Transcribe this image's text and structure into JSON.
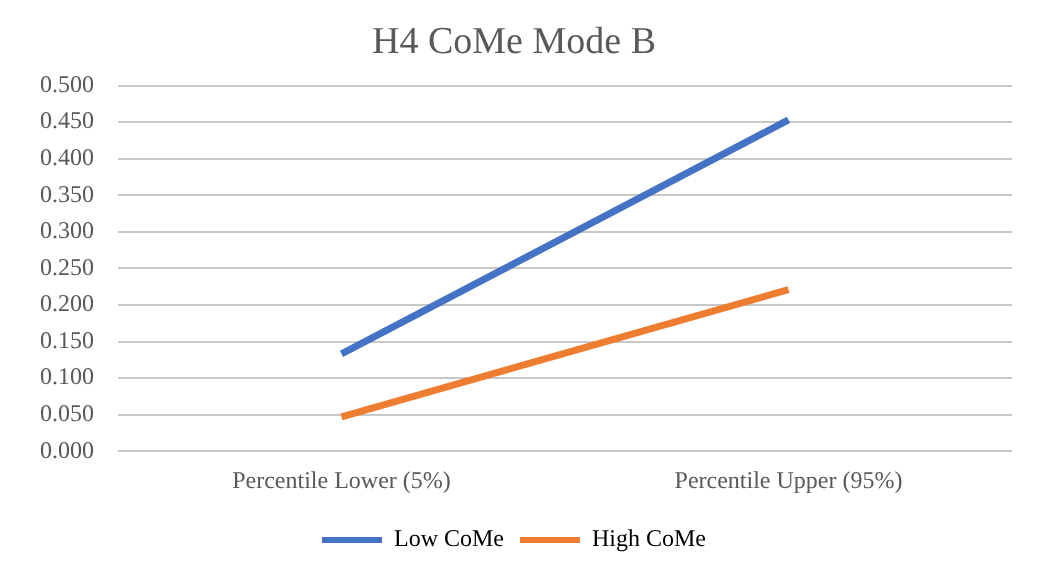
{
  "chart_data": {
    "type": "line",
    "title": "H4 CoMe Mode B",
    "categories": [
      "Percentile Lower (5%)",
      "Percentile Upper (95%)"
    ],
    "series": [
      {
        "name": "Low CoMe",
        "color": "#4472c4",
        "values": [
          0.133,
          0.453
        ]
      },
      {
        "name": "High CoMe",
        "color": "#ed7d31",
        "values": [
          0.047,
          0.221
        ]
      }
    ],
    "ylim": [
      0,
      0.5
    ],
    "yticks": [
      {
        "value": 0,
        "label": "0.000"
      },
      {
        "value": 0.05,
        "label": "0.050"
      },
      {
        "value": 0.1,
        "label": "0.100"
      },
      {
        "value": 0.15,
        "label": "0.150"
      },
      {
        "value": 0.2,
        "label": "0.200"
      },
      {
        "value": 0.25,
        "label": "0.250"
      },
      {
        "value": 0.3,
        "label": "0.300"
      },
      {
        "value": 0.35,
        "label": "0.350"
      },
      {
        "value": 0.4,
        "label": "0.400"
      },
      {
        "value": 0.45,
        "label": "0.450"
      },
      {
        "value": 0.5,
        "label": "0.500"
      }
    ],
    "grid": "y",
    "legend": "bottom",
    "marker": "none",
    "line_style": "solid"
  }
}
